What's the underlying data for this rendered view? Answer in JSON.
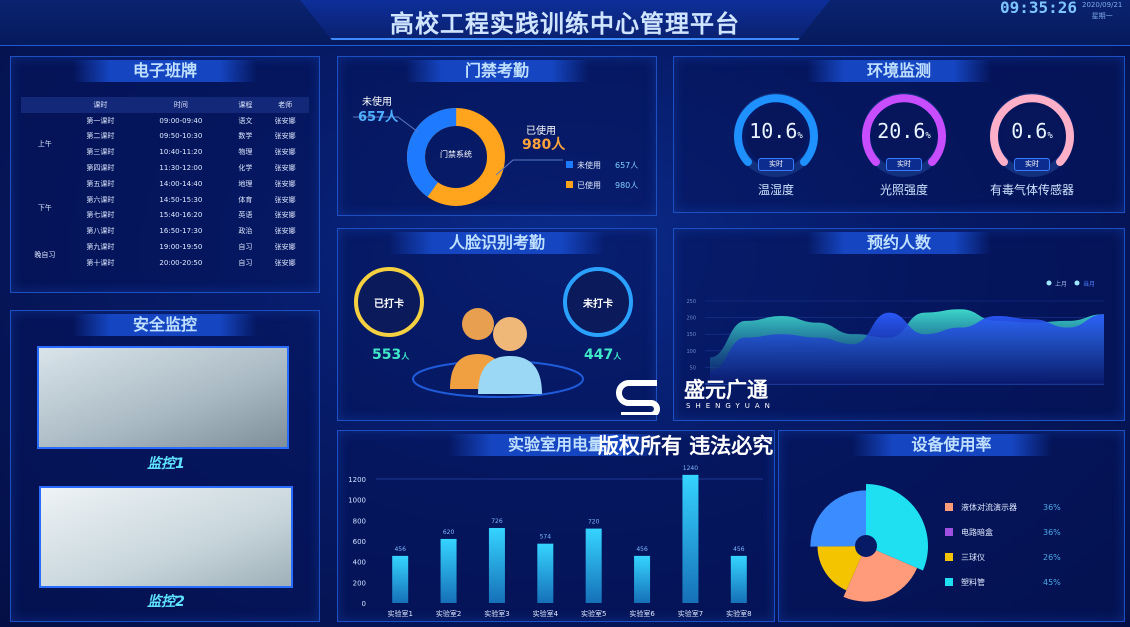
{
  "header": {
    "title": "高校工程实践训练中心管理平台",
    "time": "09:35:26",
    "date": "2020/09/21",
    "weekday": "星期一"
  },
  "schedule": {
    "title": "电子班牌",
    "columns": [
      "课时",
      "时间",
      "课程",
      "老师"
    ],
    "groups": [
      {
        "label": "上午",
        "rows": 4
      },
      {
        "label": "下午",
        "rows": 4
      },
      {
        "label": "晚自习",
        "rows": 2
      }
    ],
    "rows": [
      [
        "第一课时",
        "09:00-09:40",
        "语文",
        "张安娜"
      ],
      [
        "第二课时",
        "09:50-10:30",
        "数学",
        "张安娜"
      ],
      [
        "第三课时",
        "10:40-11:20",
        "物理",
        "张安娜"
      ],
      [
        "第四课时",
        "11:30-12:00",
        "化学",
        "张安娜"
      ],
      [
        "第五课时",
        "14:00-14:40",
        "地理",
        "张安娜"
      ],
      [
        "第六课时",
        "14:50-15:30",
        "体育",
        "张安娜"
      ],
      [
        "第七课时",
        "15:40-16:20",
        "英语",
        "张安娜"
      ],
      [
        "第八课时",
        "16:50-17:30",
        "政治",
        "张安娜"
      ],
      [
        "第九课时",
        "19:00-19:50",
        "自习",
        "张安娜"
      ],
      [
        "第十课时",
        "20:00-20:50",
        "自习",
        "张安娜"
      ]
    ]
  },
  "security": {
    "title": "安全监控",
    "cam1": "监控1",
    "cam2": "监控2"
  },
  "access": {
    "title": "门禁考勤",
    "center": "门禁系统",
    "unused_label": "未使用",
    "unused_value": "657人",
    "used_label": "已使用",
    "used_value": "980人",
    "unused": 657,
    "used": 980,
    "colors": {
      "unused": "#1e7bff",
      "used": "#ffa41c"
    }
  },
  "face": {
    "title": "人脸识别考勤",
    "checked_label": "已打卡",
    "checked_value": "553",
    "unchecked_label": "未打卡",
    "unchecked_value": "447",
    "unit": "人"
  },
  "env": {
    "title": "环境监测",
    "badge": "实时",
    "gauges": [
      {
        "value": "10.6",
        "pct": 10.6,
        "label": "温湿度",
        "color": "#1e90ff"
      },
      {
        "value": "20.6",
        "pct": 20.6,
        "label": "光照强度",
        "color": "#c84dff"
      },
      {
        "value": "0.6",
        "pct": 0.6,
        "label": "有毒气体传感器",
        "color": "#ffb0c8"
      }
    ],
    "unit": "%"
  },
  "booking": {
    "title": "预约人数"
  },
  "power": {
    "title": "实验室用电量"
  },
  "equipment": {
    "title": "设备使用率"
  },
  "watermark": {
    "brand": "盛元广通",
    "brand_en": "SHENGYUAN",
    "copyright": "版权所有 违法必究"
  },
  "chart_data": [
    {
      "type": "bar",
      "title": "实验室用电量",
      "categories": [
        "实验室1",
        "实验室2",
        "实验室3",
        "实验室4",
        "实验室5",
        "实验室6",
        "实验室7",
        "实验室8"
      ],
      "values": [
        456,
        620,
        726,
        574,
        720,
        456,
        1240,
        456
      ],
      "yticks": [
        0,
        200,
        400,
        600,
        800,
        1000,
        1200
      ],
      "ylim": [
        0,
        1240
      ]
    },
    {
      "type": "area",
      "title": "预约人数",
      "yticks": [
        50,
        100,
        150,
        200,
        250
      ],
      "ylim": [
        0,
        250
      ],
      "series": [
        {
          "name": "上月",
          "color": "#3fe0d0",
          "values": [
            80,
            190,
            205,
            185,
            150,
            140,
            215,
            225,
            190,
            185,
            190,
            210
          ]
        },
        {
          "name": "当月",
          "color": "#2c5cff",
          "values": [
            40,
            140,
            150,
            140,
            120,
            215,
            150,
            170,
            205,
            195,
            170,
            210
          ]
        }
      ],
      "legend": "top-right"
    },
    {
      "type": "pie",
      "title": "设备使用率",
      "labels": [
        "液体对流演示器",
        "电路暗盒",
        "三球仪",
        "塑料管"
      ],
      "values": [
        36,
        36,
        26,
        45
      ],
      "value_labels": [
        "36%",
        "36%",
        "26%",
        "45%"
      ],
      "colors": [
        "#ff9a7a",
        "#a050e0",
        "#f5c400",
        "#1ee0f0"
      ]
    }
  ]
}
